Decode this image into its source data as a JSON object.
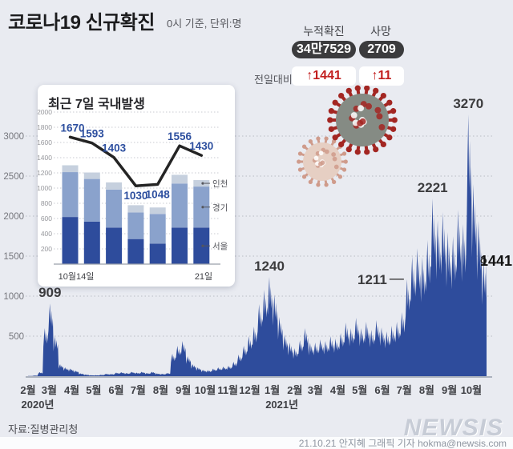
{
  "header": {
    "title": "코로나19 신규확진",
    "subtitle": "0시 기준, 단위:명",
    "delta_label": "전일대비",
    "stats": [
      {
        "label": "누적확진",
        "value": "34만7529",
        "delta": "↑1441"
      },
      {
        "label": "사망",
        "value": "2709",
        "delta": "↑11"
      }
    ]
  },
  "footer": {
    "source": "자료:질병관리청",
    "logo": "NEWSIS",
    "credit": "21.10.21 안지혜 그래픽 기자 hokma@newsis.com"
  },
  "colors": {
    "background": "#e9ebf1",
    "accent_blue": "#2e4c9c",
    "badge_dark": "#3b3b3d",
    "delta_red": "#c21f1f",
    "bar_seoul": "#2e4c9c",
    "bar_gyeonggi": "#8aa2cc",
    "bar_incheon": "#c6d0de",
    "total_line": "#242424",
    "line_label_blue": "#2d4f9f",
    "annotation_gray": "#3c3c3e",
    "grid": "#b9bcc4",
    "axis": "#97a0ad",
    "virus_body": "#858b84",
    "virus_spike": "#a32622",
    "virus2_body": "#e6cfc3",
    "virus2_spike": "#cf9b8b"
  },
  "chart_data": [
    {
      "id": "inset",
      "type": "bar",
      "stacked": true,
      "title": "최근 7일 국내발생",
      "x_first_label": "10월14일",
      "x_last_label": "21일",
      "ylim": [
        0,
        2000
      ],
      "yticks": [
        200,
        400,
        600,
        800,
        1000,
        1200,
        1400,
        1600,
        1800,
        2000
      ],
      "series": [
        {
          "name": "서울",
          "color_key": "bar_seoul",
          "values": [
            620,
            560,
            480,
            330,
            270,
            480,
            480
          ]
        },
        {
          "name": "경기",
          "color_key": "bar_gyeonggi",
          "values": [
            590,
            560,
            500,
            350,
            390,
            580,
            540
          ]
        },
        {
          "name": "인천",
          "color_key": "bar_incheon",
          "values": [
            90,
            85,
            95,
            95,
            85,
            115,
            85
          ]
        }
      ],
      "line_total": {
        "values": [
          1670,
          1593,
          1403,
          1030,
          1048,
          1556,
          1430
        ],
        "label_below": [
          false,
          false,
          false,
          true,
          true,
          false,
          false
        ]
      },
      "legend": [
        "인천",
        "경기",
        "서울"
      ]
    },
    {
      "id": "main",
      "type": "area",
      "ylim": [
        0,
        3400
      ],
      "yticks": [
        500,
        1000,
        1500,
        2000,
        2500,
        3000
      ],
      "month_labels": [
        "2월",
        "3월",
        "4월",
        "5월",
        "6월",
        "7월",
        "8월",
        "9월",
        "10월",
        "11월",
        "12월",
        "1월",
        "2월",
        "3월",
        "4월",
        "5월",
        "6월",
        "7월",
        "8월",
        "9월",
        "10월"
      ],
      "month_days": [
        29,
        31,
        30,
        31,
        30,
        31,
        31,
        30,
        31,
        30,
        31,
        31,
        28,
        31,
        30,
        31,
        30,
        31,
        31,
        30,
        31
      ],
      "year_labels": [
        {
          "text": "2020년",
          "month_index": 0
        },
        {
          "text": "2021년",
          "month_index": 11
        }
      ],
      "weekly_values": [
        3,
        8,
        50,
        600,
        909,
        500,
        150,
        110,
        95,
        70,
        35,
        20,
        12,
        12,
        18,
        30,
        28,
        45,
        50,
        40,
        55,
        45,
        55,
        40,
        55,
        35,
        30,
        40,
        280,
        380,
        440,
        250,
        150,
        110,
        80,
        75,
        95,
        110,
        120,
        130,
        180,
        270,
        380,
        500,
        620,
        900,
        1080,
        1240,
        1020,
        740,
        520,
        420,
        350,
        450,
        600,
        420,
        420,
        460,
        440,
        500,
        470,
        540,
        670,
        600,
        730,
        600,
        680,
        580,
        700,
        610,
        560,
        630,
        680,
        800,
        1211,
        1500,
        1600,
        1490,
        1700,
        2221,
        1950,
        2050,
        1800,
        1750,
        2080,
        1900,
        3270,
        2400,
        1940,
        1441
      ],
      "annotations": [
        {
          "value": 909,
          "week": 4,
          "style": "above"
        },
        {
          "value": 1240,
          "week": 47,
          "style": "above"
        },
        {
          "value": 1211,
          "week": 74,
          "style": "left-line"
        },
        {
          "value": 2221,
          "week": 79,
          "style": "above"
        },
        {
          "value": 3270,
          "week": 86,
          "style": "above"
        },
        {
          "value": 1441,
          "week": 89,
          "style": "end-marker"
        }
      ]
    }
  ]
}
